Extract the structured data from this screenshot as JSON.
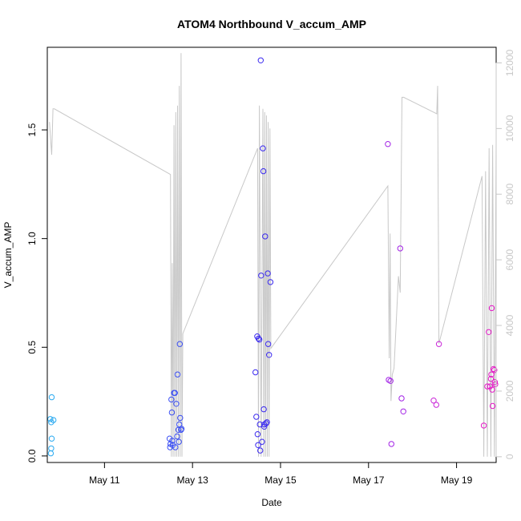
{
  "chart_data": {
    "type": "scatter",
    "title": "ATOM4 Northbound V_accum_AMP",
    "xlabel": "Date",
    "ylabel": "V_accum_AMP",
    "x_unit": "days in May",
    "xlim": [
      9.7,
      19.9
    ],
    "ylim": [
      -0.03,
      1.88
    ],
    "y2lim": [
      -175,
      12475
    ],
    "x_ticks": [
      {
        "value": 11,
        "label": "May 11"
      },
      {
        "value": 13,
        "label": "May 13"
      },
      {
        "value": 15,
        "label": "May 15"
      },
      {
        "value": 17,
        "label": "May 17"
      },
      {
        "value": 19,
        "label": "May 19"
      }
    ],
    "y_ticks": [
      {
        "value": 0.0,
        "label": "0.0"
      },
      {
        "value": 0.5,
        "label": "0.5"
      },
      {
        "value": 1.0,
        "label": "1.0"
      },
      {
        "value": 1.5,
        "label": "1.5"
      }
    ],
    "y2_ticks": [
      {
        "value": 0,
        "label": "0"
      },
      {
        "value": 2000,
        "label": "2000"
      },
      {
        "value": 4000,
        "label": "4000"
      },
      {
        "value": 6000,
        "label": "6000"
      },
      {
        "value": 8000,
        "label": "8000"
      },
      {
        "value": 10000,
        "label": "10000"
      },
      {
        "value": 12000,
        "label": "12000"
      }
    ],
    "line_color": "#c8c8c8",
    "point_series": [
      {
        "name": "points",
        "color_scale": "cyan to magenta by date",
        "points": [
          [
            9.77,
            0.17,
            "#29a9f0"
          ],
          [
            9.79,
            0.155,
            "#29a9f0"
          ],
          [
            9.8,
            0.27,
            "#29a9f0"
          ],
          [
            9.8,
            0.08,
            "#29a9f0"
          ],
          [
            9.79,
            0.035,
            "#29a9f0"
          ],
          [
            9.78,
            0.012,
            "#29a9f0"
          ],
          [
            9.84,
            0.165,
            "#29a9f0"
          ],
          [
            12.48,
            0.08,
            "#3b4ff4"
          ],
          [
            12.5,
            0.055,
            "#3b4ff4"
          ],
          [
            12.49,
            0.04,
            "#3b4ff4"
          ],
          [
            12.52,
            0.26,
            "#3b4ff4"
          ],
          [
            12.53,
            0.2,
            "#3b4ff4"
          ],
          [
            12.54,
            0.07,
            "#3b4ff4"
          ],
          [
            12.55,
            0.05,
            "#3b4ff4"
          ],
          [
            12.58,
            0.29,
            "#3b4ff4"
          ],
          [
            12.6,
            0.29,
            "#3b4ff4"
          ],
          [
            12.61,
            0.04,
            "#3b4ff4"
          ],
          [
            12.63,
            0.24,
            "#3b4ff4"
          ],
          [
            12.65,
            0.09,
            "#3b4ff4"
          ],
          [
            12.66,
            0.375,
            "#3b4ff4"
          ],
          [
            12.68,
            0.12,
            "#3b4ff4"
          ],
          [
            12.69,
            0.065,
            "#3b4ff4"
          ],
          [
            12.7,
            0.145,
            "#3b4ff4"
          ],
          [
            12.71,
            0.515,
            "#3b4ff4"
          ],
          [
            12.72,
            0.175,
            "#3b4ff4"
          ],
          [
            12.74,
            0.12,
            "#3b4ff4"
          ],
          [
            12.75,
            0.125,
            "#3b4ff4"
          ],
          [
            14.43,
            0.385,
            "#3b2af0"
          ],
          [
            14.45,
            0.18,
            "#3b2af0"
          ],
          [
            14.47,
            0.55,
            "#3b2af0"
          ],
          [
            14.48,
            0.1,
            "#3b2af0"
          ],
          [
            14.49,
            0.05,
            "#3b2af0"
          ],
          [
            14.5,
            0.54,
            "#3b2af0"
          ],
          [
            14.52,
            0.535,
            "#3b2af0"
          ],
          [
            14.53,
            0.145,
            "#3b2af0"
          ],
          [
            14.54,
            0.025,
            "#3b2af0"
          ],
          [
            14.55,
            1.82,
            "#3b2af0"
          ],
          [
            14.56,
            0.83,
            "#3b2af0"
          ],
          [
            14.58,
            0.065,
            "#3b2af0"
          ],
          [
            14.6,
            1.415,
            "#3b2af0"
          ],
          [
            14.61,
            1.31,
            "#3b2af0"
          ],
          [
            14.62,
            0.215,
            "#3b2af0"
          ],
          [
            14.63,
            0.145,
            "#3b2af0"
          ],
          [
            14.65,
            1.01,
            "#3b2af0"
          ],
          [
            14.67,
            0.15,
            "#3b2af0"
          ],
          [
            14.69,
            0.155,
            "#3b2af0"
          ],
          [
            14.71,
            0.84,
            "#3b2af0"
          ],
          [
            14.72,
            0.515,
            "#3b2af0"
          ],
          [
            14.74,
            0.465,
            "#3b2af0"
          ],
          [
            14.77,
            0.8,
            "#3b2af0"
          ],
          [
            14.63,
            0.135,
            "#3b2af0"
          ],
          [
            17.44,
            1.435,
            "#a323e6"
          ],
          [
            17.46,
            0.35,
            "#a323e6"
          ],
          [
            17.5,
            0.345,
            "#a323e6"
          ],
          [
            17.52,
            0.055,
            "#a323e6"
          ],
          [
            17.72,
            0.955,
            "#a323e6"
          ],
          [
            17.75,
            0.265,
            "#a323e6"
          ],
          [
            17.79,
            0.205,
            "#a323e6"
          ],
          [
            18.48,
            0.255,
            "#c923d8"
          ],
          [
            18.54,
            0.235,
            "#c923d8"
          ],
          [
            18.6,
            0.515,
            "#c923d8"
          ],
          [
            19.62,
            0.14,
            "#e619c8"
          ],
          [
            19.7,
            0.32,
            "#e619c8"
          ],
          [
            19.73,
            0.57,
            "#e619c8"
          ],
          [
            19.76,
            0.32,
            "#e619c8"
          ],
          [
            19.78,
            0.355,
            "#e619c8"
          ],
          [
            19.79,
            0.375,
            "#e619c8"
          ],
          [
            19.8,
            0.68,
            "#e619c8"
          ],
          [
            19.81,
            0.305,
            "#e619c8"
          ],
          [
            19.82,
            0.23,
            "#e619c8"
          ],
          [
            19.84,
            0.4,
            "#e619c8"
          ],
          [
            19.86,
            0.395,
            "#e619c8"
          ],
          [
            19.87,
            0.34,
            "#e619c8"
          ],
          [
            19.88,
            0.33,
            "#e619c8"
          ]
        ]
      }
    ],
    "line_series": [
      {
        "name": "counter",
        "axis": "right",
        "x": [
          9.75,
          9.8,
          9.83,
          9.86,
          12.5,
          12.52,
          12.54,
          12.56,
          12.58,
          12.6,
          12.62,
          12.64,
          12.66,
          12.68,
          12.7,
          12.72,
          12.74,
          12.76,
          12.78,
          14.48,
          14.5,
          14.52,
          14.56,
          14.6,
          14.62,
          14.64,
          14.66,
          14.68,
          14.7,
          14.72,
          14.74,
          14.76,
          14.78,
          17.44,
          17.47,
          17.49,
          17.51,
          17.54,
          17.58,
          17.68,
          17.72,
          17.76,
          17.8,
          18.55,
          18.57,
          18.6,
          19.58,
          19.62,
          19.66,
          19.7,
          19.74,
          19.78,
          19.82,
          19.86,
          19.9
        ],
        "y": [
          10200,
          9200,
          10600,
          10600,
          8600,
          0,
          5900,
          0,
          10100,
          0,
          10500,
          0,
          10700,
          0,
          11300,
          0,
          12300,
          0,
          3750,
          9400,
          0,
          10700,
          0,
          10600,
          0,
          10500,
          0,
          10400,
          0,
          10200,
          0,
          10000,
          3300,
          8250,
          3000,
          6800,
          1700,
          2500,
          2700,
          5500,
          5000,
          10950,
          10950,
          10450,
          11300,
          3450,
          8550,
          0,
          8700,
          0,
          9400,
          0,
          9500,
          0,
          9550
        ]
      }
    ]
  }
}
